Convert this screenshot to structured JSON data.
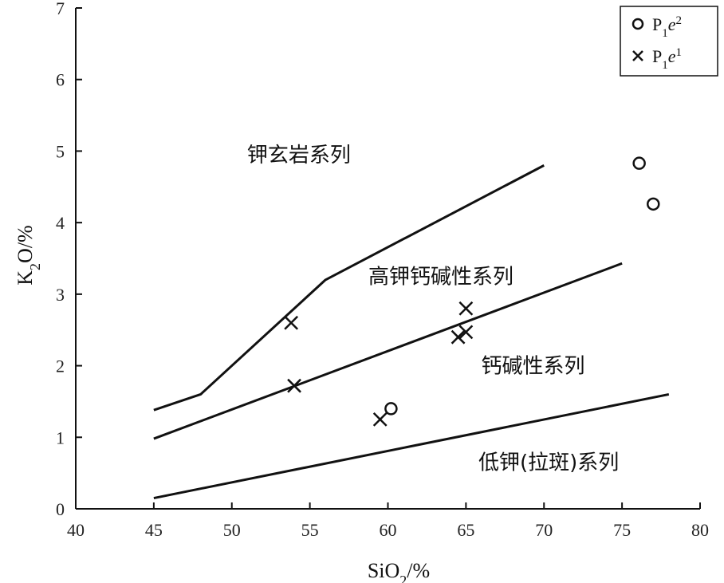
{
  "chart_data": {
    "type": "scatter",
    "xlabel": {
      "main": "SiO",
      "sub": "2",
      "tail": "/%"
    },
    "ylabel": {
      "main": "K",
      "sub": "2",
      "tail": "O/%"
    },
    "xlim": [
      40,
      80
    ],
    "ylim": [
      0,
      7
    ],
    "xticks": [
      "40",
      "45",
      "50",
      "55",
      "60",
      "65",
      "70",
      "75",
      "80"
    ],
    "yticks": [
      "0",
      "1",
      "2",
      "3",
      "4",
      "5",
      "6",
      "7"
    ],
    "legend_position": "top-right",
    "series": [
      {
        "name": {
          "base": "P",
          "sub": "1",
          "ital": "e",
          "sup": "2"
        },
        "marker": "circle",
        "points": [
          [
            60.2,
            1.4
          ],
          [
            76.1,
            4.83
          ],
          [
            77.0,
            4.26
          ]
        ]
      },
      {
        "name": {
          "base": "P",
          "sub": "1",
          "ital": "e",
          "sup": "1"
        },
        "marker": "cross",
        "points": [
          [
            53.8,
            2.6
          ],
          [
            54.0,
            1.72
          ],
          [
            59.5,
            1.25
          ],
          [
            64.5,
            2.4
          ],
          [
            65.0,
            2.47
          ],
          [
            65.0,
            2.8
          ]
        ]
      }
    ],
    "boundary_lines": [
      [
        [
          45,
          1.38
        ],
        [
          48,
          1.6
        ],
        [
          56,
          3.2
        ],
        [
          70,
          4.8
        ]
      ],
      [
        [
          45,
          0.98
        ],
        [
          75,
          3.43
        ]
      ],
      [
        [
          45,
          0.15
        ],
        [
          78,
          1.6
        ]
      ]
    ],
    "region_labels": [
      {
        "text": "钾玄岩系列",
        "x": 54.3,
        "y": 4.95
      },
      {
        "text": "高钾钙碱性系列",
        "x": 63.4,
        "y": 3.25
      },
      {
        "text": "钙碱性系列",
        "x": 69.3,
        "y": 2.0
      },
      {
        "text": "低钾(拉斑)系列",
        "x": 70.3,
        "y": 0.65
      }
    ]
  }
}
